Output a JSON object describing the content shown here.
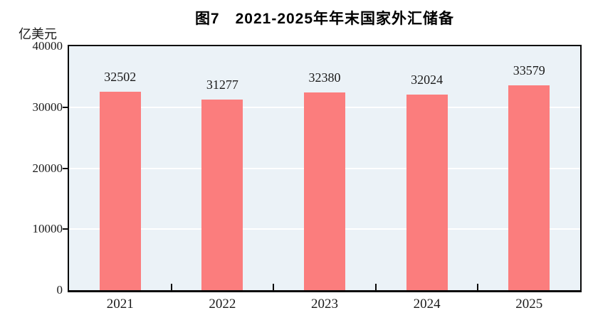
{
  "header": {
    "title": "图7　2021-2025年年末国家外汇储备",
    "y_unit_label": "亿美元"
  },
  "chart_data": {
    "type": "bar",
    "title": "图7　2021-2025年年末国家外汇储备",
    "categories": [
      "2021",
      "2022",
      "2023",
      "2024",
      "2025"
    ],
    "values": [
      32502,
      31277,
      32380,
      32024,
      33579
    ],
    "data_labels_visible": true,
    "xlabel": "",
    "ylabel": "亿美元",
    "ylim": [
      0,
      40000
    ],
    "yticks": [
      0,
      10000,
      20000,
      30000,
      40000
    ],
    "grid": true,
    "legend_position": "none",
    "colors": {
      "bar_fill": "#FB7D7D",
      "plot_background": "#EBF2F7",
      "gridline": "#FFFFFF",
      "axis_border": "#0A0A0A",
      "text": "#1A1A1A",
      "page_background": "#FFFFFF"
    }
  }
}
